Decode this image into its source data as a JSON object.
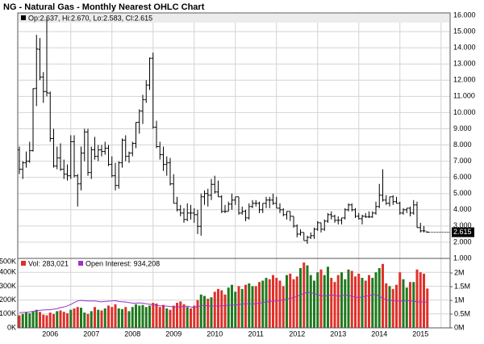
{
  "chart_data": [
    {
      "type": "ohlc",
      "title": "NG - Natural Gas - Monthly Nearest OHLC Chart",
      "legend": "Op:2.637, Hi:2.670, Lo:2.583, Cl:2.615",
      "last_label": "2.615",
      "color": "#000000",
      "grid": true,
      "categories": [
        null,
        null,
        null,
        null,
        null,
        null,
        null,
        null,
        null,
        "2006",
        null,
        null,
        null,
        null,
        null,
        null,
        null,
        null,
        null,
        null,
        null,
        "2007",
        null,
        null,
        null,
        null,
        null,
        null,
        null,
        null,
        null,
        null,
        null,
        "2008",
        null,
        null,
        null,
        null,
        null,
        null,
        null,
        null,
        null,
        null,
        null,
        "2009",
        null,
        null,
        null,
        null,
        null,
        null,
        null,
        null,
        null,
        null,
        null,
        "2010",
        null,
        null,
        null,
        null,
        null,
        null,
        null,
        null,
        null,
        null,
        null,
        "2011",
        null,
        null,
        null,
        null,
        null,
        null,
        null,
        null,
        null,
        null,
        null,
        "2012",
        null,
        null,
        null,
        null,
        null,
        null,
        null,
        null,
        null,
        null,
        null,
        "2013",
        null,
        null,
        null,
        null,
        null,
        null,
        null,
        null,
        null,
        null,
        null,
        "2014",
        null,
        null,
        null,
        null,
        null,
        null,
        null,
        null,
        null,
        null,
        null,
        "2015",
        null,
        null
      ],
      "open": [
        7.7,
        6.5,
        6.9,
        7.0,
        7.65,
        11.5,
        13.9,
        12.2,
        11.3,
        11.2,
        8.4,
        6.7,
        7.2,
        6.5,
        6.2,
        6.1,
        8.2,
        6.1,
        5.6,
        7.5,
        8.8,
        6.3,
        7.7,
        7.3,
        7.7,
        7.6,
        7.8,
        6.8,
        6.1,
        5.5,
        6.9,
        8.3,
        7.3,
        7.5,
        8.1,
        9.4,
        10.1,
        10.8,
        11.7,
        13.35,
        9.1,
        7.9,
        7.4,
        6.8,
        6.9,
        5.6,
        4.4,
        4.0,
        3.8,
        3.4,
        3.8,
        3.8,
        3.7,
        2.98,
        4.8,
        5.0,
        4.9,
        5.57,
        5.1,
        4.8,
        3.9,
        3.9,
        4.35,
        4.6,
        4.8,
        3.8,
        3.9,
        3.5,
        4.2,
        4.4,
        4.4,
        4.0,
        4.4,
        4.6,
        4.6,
        4.4,
        4.1,
        4.0,
        3.7,
        3.9,
        3.6,
        3.0,
        2.5,
        2.6,
        2.1,
        2.3,
        2.4,
        2.8,
        3.2,
        2.8,
        3.3,
        3.7,
        3.6,
        3.35,
        3.35,
        3.5,
        4.0,
        4.3,
        4.0,
        3.6,
        3.45,
        3.6,
        3.56,
        3.56,
        3.8,
        4.2,
        4.9,
        4.6,
        4.4,
        4.8,
        4.5,
        4.4,
        3.8,
        4.0,
        4.1,
        3.8,
        4.3,
        2.9,
        2.7,
        2.637
      ],
      "high": [
        7.9,
        7.0,
        7.6,
        8.2,
        11.5,
        14.8,
        14.6,
        12.5,
        15.8,
        11.3,
        9.0,
        7.9,
        8.1,
        7.1,
        6.8,
        8.6,
        8.6,
        6.2,
        7.9,
        9.0,
        9.0,
        7.9,
        8.5,
        8.0,
        8.0,
        8.2,
        8.0,
        7.3,
        6.9,
        7.0,
        8.4,
        8.6,
        7.6,
        8.2,
        9.4,
        10.2,
        11.1,
        12.0,
        13.4,
        13.7,
        9.5,
        8.2,
        7.9,
        7.3,
        7.2,
        6.2,
        4.8,
        4.3,
        4.1,
        4.4,
        4.3,
        4.1,
        4.0,
        5.0,
        5.2,
        5.3,
        5.9,
        6.1,
        5.8,
        4.9,
        4.3,
        4.5,
        5.0,
        4.8,
        4.8,
        4.2,
        4.0,
        4.4,
        4.6,
        4.6,
        4.5,
        4.4,
        4.8,
        4.8,
        5.0,
        4.8,
        4.4,
        4.1,
        3.9,
        3.9,
        3.6,
        3.1,
        2.8,
        2.6,
        2.4,
        2.6,
        2.9,
        3.3,
        3.2,
        3.4,
        3.8,
        3.9,
        3.7,
        3.6,
        3.5,
        4.1,
        4.4,
        4.4,
        4.1,
        3.8,
        3.7,
        3.8,
        3.9,
        3.9,
        4.5,
        5.6,
        6.5,
        4.9,
        4.8,
        4.9,
        4.8,
        4.5,
        4.1,
        4.1,
        4.2,
        4.6,
        4.5,
        3.2,
        3.0,
        2.67
      ],
      "low": [
        6.2,
        5.9,
        6.6,
        6.9,
        7.6,
        10.4,
        12.0,
        10.6,
        11.0,
        8.2,
        6.6,
        6.5,
        6.4,
        5.9,
        5.8,
        5.9,
        6.0,
        4.2,
        5.2,
        7.0,
        6.1,
        5.9,
        7.1,
        7.0,
        7.3,
        7.4,
        6.7,
        6.0,
        5.2,
        5.3,
        6.6,
        7.0,
        6.9,
        7.3,
        7.8,
        8.7,
        9.3,
        10.6,
        11.4,
        9.0,
        7.8,
        7.1,
        6.4,
        6.1,
        5.5,
        4.4,
        3.9,
        3.6,
        3.2,
        3.3,
        3.4,
        3.2,
        2.5,
        2.4,
        4.3,
        4.2,
        4.6,
        5.0,
        4.8,
        3.8,
        3.8,
        3.9,
        4.0,
        4.3,
        3.7,
        3.7,
        3.3,
        3.4,
        4.1,
        4.2,
        3.8,
        3.8,
        4.1,
        4.1,
        4.3,
        4.1,
        3.8,
        3.6,
        3.4,
        3.3,
        2.9,
        2.3,
        2.4,
        2.1,
        1.9,
        2.2,
        2.2,
        2.7,
        2.6,
        2.7,
        3.2,
        3.4,
        3.2,
        3.1,
        3.1,
        3.4,
        3.9,
        3.9,
        3.5,
        3.4,
        3.1,
        3.5,
        3.5,
        3.5,
        3.7,
        4.1,
        4.5,
        4.3,
        4.2,
        4.3,
        4.4,
        3.7,
        3.7,
        3.8,
        3.6,
        3.7,
        2.9,
        2.6,
        2.6,
        2.583
      ],
      "close": [
        6.5,
        6.9,
        7.0,
        7.65,
        11.47,
        13.92,
        12.19,
        11.3,
        11.22,
        8.4,
        6.7,
        7.2,
        6.5,
        6.2,
        6.1,
        8.2,
        6.1,
        5.6,
        7.5,
        8.8,
        6.3,
        7.7,
        7.3,
        7.7,
        7.6,
        7.8,
        6.8,
        6.1,
        5.5,
        6.9,
        8.3,
        7.3,
        7.5,
        8.1,
        9.4,
        10.1,
        10.8,
        11.7,
        13.35,
        9.1,
        7.9,
        7.4,
        6.8,
        6.9,
        5.6,
        4.4,
        4.0,
        3.8,
        3.4,
        3.8,
        3.8,
        3.7,
        2.98,
        4.8,
        5.0,
        4.9,
        5.57,
        5.1,
        4.8,
        3.9,
        3.9,
        4.35,
        4.6,
        4.8,
        3.8,
        3.9,
        3.5,
        4.2,
        4.4,
        4.4,
        4.0,
        4.4,
        4.6,
        4.6,
        4.4,
        4.1,
        4.0,
        3.7,
        3.9,
        3.6,
        3.0,
        2.5,
        2.6,
        2.1,
        2.3,
        2.4,
        2.8,
        3.2,
        2.8,
        3.3,
        3.7,
        3.6,
        3.35,
        3.35,
        3.5,
        4.0,
        4.3,
        4.0,
        3.6,
        3.45,
        3.6,
        3.56,
        3.56,
        3.8,
        4.2,
        4.9,
        4.6,
        4.4,
        4.8,
        4.5,
        4.4,
        3.8,
        4.0,
        4.1,
        3.8,
        4.3,
        2.9,
        2.7,
        2.7,
        2.615
      ],
      "ylim": [
        1,
        16.15
      ],
      "yticks": [
        {
          "value": 1,
          "label": "1.000"
        },
        {
          "value": 2,
          "label": "2.000"
        },
        {
          "value": 3,
          "label": "3.000"
        },
        {
          "value": 4,
          "label": "4.000"
        },
        {
          "value": 5,
          "label": "5.000"
        },
        {
          "value": 6,
          "label": "6.000"
        },
        {
          "value": 7,
          "label": "7.000"
        },
        {
          "value": 8,
          "label": "8.000"
        },
        {
          "value": 9,
          "label": "9.000"
        },
        {
          "value": 10,
          "label": "10.000"
        },
        {
          "value": 11,
          "label": "11.000"
        },
        {
          "value": 12,
          "label": "12.000"
        },
        {
          "value": 13,
          "label": "13.000"
        },
        {
          "value": 14,
          "label": "14.000"
        },
        {
          "value": 15,
          "label": "15.000"
        },
        {
          "value": 16,
          "label": "16.000"
        }
      ]
    },
    {
      "type": "bar",
      "up_color": "#1f7a1f",
      "down_color": "#e0302a",
      "grid": true,
      "series": [
        {
          "name": "Vol: 283,021",
          "color": "#e0302a",
          "values": [
            90000,
            100000,
            110000,
            105000,
            120000,
            130000,
            115000,
            95000,
            90000,
            110000,
            100000,
            120000,
            125000,
            115000,
            105000,
            130000,
            140000,
            150000,
            145000,
            110000,
            100000,
            120000,
            150000,
            130000,
            125000,
            140000,
            160000,
            150000,
            170000,
            140000,
            135000,
            150000,
            120000,
            150000,
            170000,
            160000,
            165000,
            150000,
            160000,
            180000,
            175000,
            150000,
            165000,
            140000,
            130000,
            160000,
            180000,
            190000,
            170000,
            150000,
            140000,
            160000,
            200000,
            240000,
            230000,
            210000,
            220000,
            260000,
            280000,
            270000,
            240000,
            290000,
            310000,
            260000,
            300000,
            280000,
            310000,
            320000,
            300000,
            300000,
            330000,
            340000,
            360000,
            350000,
            380000,
            360000,
            340000,
            300000,
            380000,
            390000,
            350000,
            370000,
            430000,
            470000,
            450000,
            380000,
            340000,
            400000,
            420000,
            380000,
            440000,
            360000,
            330000,
            380000,
            400000,
            350000,
            420000,
            410000,
            370000,
            390000,
            360000,
            340000,
            380000,
            360000,
            400000,
            430000,
            460000,
            320000,
            300000,
            280000,
            310000,
            400000,
            350000,
            290000,
            330000,
            330000,
            420000,
            400000,
            390000,
            283021
          ]
        },
        {
          "name": "Open Interest: 934,208",
          "color": "#9933cc",
          "axis": "y2",
          "values": [
            560000,
            560000,
            570000,
            580000,
            600000,
            620000,
            640000,
            650000,
            660000,
            660000,
            680000,
            700000,
            740000,
            760000,
            800000,
            850000,
            920000,
            980000,
            1000000,
            990000,
            980000,
            980000,
            980000,
            960000,
            950000,
            960000,
            970000,
            980000,
            990000,
            960000,
            950000,
            940000,
            920000,
            900000,
            900000,
            910000,
            900000,
            880000,
            860000,
            840000,
            820000,
            800000,
            800000,
            790000,
            780000,
            760000,
            760000,
            770000,
            780000,
            790000,
            760000,
            740000,
            780000,
            800000,
            820000,
            800000,
            790000,
            800000,
            790000,
            800000,
            810000,
            820000,
            830000,
            830000,
            850000,
            870000,
            880000,
            880000,
            870000,
            880000,
            900000,
            920000,
            940000,
            960000,
            970000,
            980000,
            1000000,
            1020000,
            1050000,
            1080000,
            1100000,
            1150000,
            1200000,
            1250000,
            1300000,
            1280000,
            1250000,
            1200000,
            1180000,
            1150000,
            1180000,
            1200000,
            1180000,
            1150000,
            1170000,
            1200000,
            1180000,
            1150000,
            1120000,
            1100000,
            1130000,
            1150000,
            1180000,
            1200000,
            1220000,
            1150000,
            1080000,
            1020000,
            1000000,
            1000000,
            980000,
            970000,
            990000,
            1000000,
            980000,
            970000,
            950000,
            940000,
            940000,
            934208
          ]
        }
      ],
      "ylim": [
        0,
        500000
      ],
      "yticks": [
        {
          "value": 0,
          "label": "0K"
        },
        {
          "value": 100000,
          "label": "100K"
        },
        {
          "value": 200000,
          "label": "200K"
        },
        {
          "value": 300000,
          "label": "300K"
        },
        {
          "value": 400000,
          "label": "400K"
        },
        {
          "value": 500000,
          "label": "500K"
        }
      ],
      "y2lim": [
        0,
        2530000
      ],
      "y2ticks": [
        {
          "value": 0,
          "label": "0M"
        },
        {
          "value": 500000,
          "label": "0.5M"
        },
        {
          "value": 1000000,
          "label": "1M"
        },
        {
          "value": 1500000,
          "label": "1.5M"
        },
        {
          "value": 2000000,
          "label": "2M"
        }
      ]
    }
  ]
}
